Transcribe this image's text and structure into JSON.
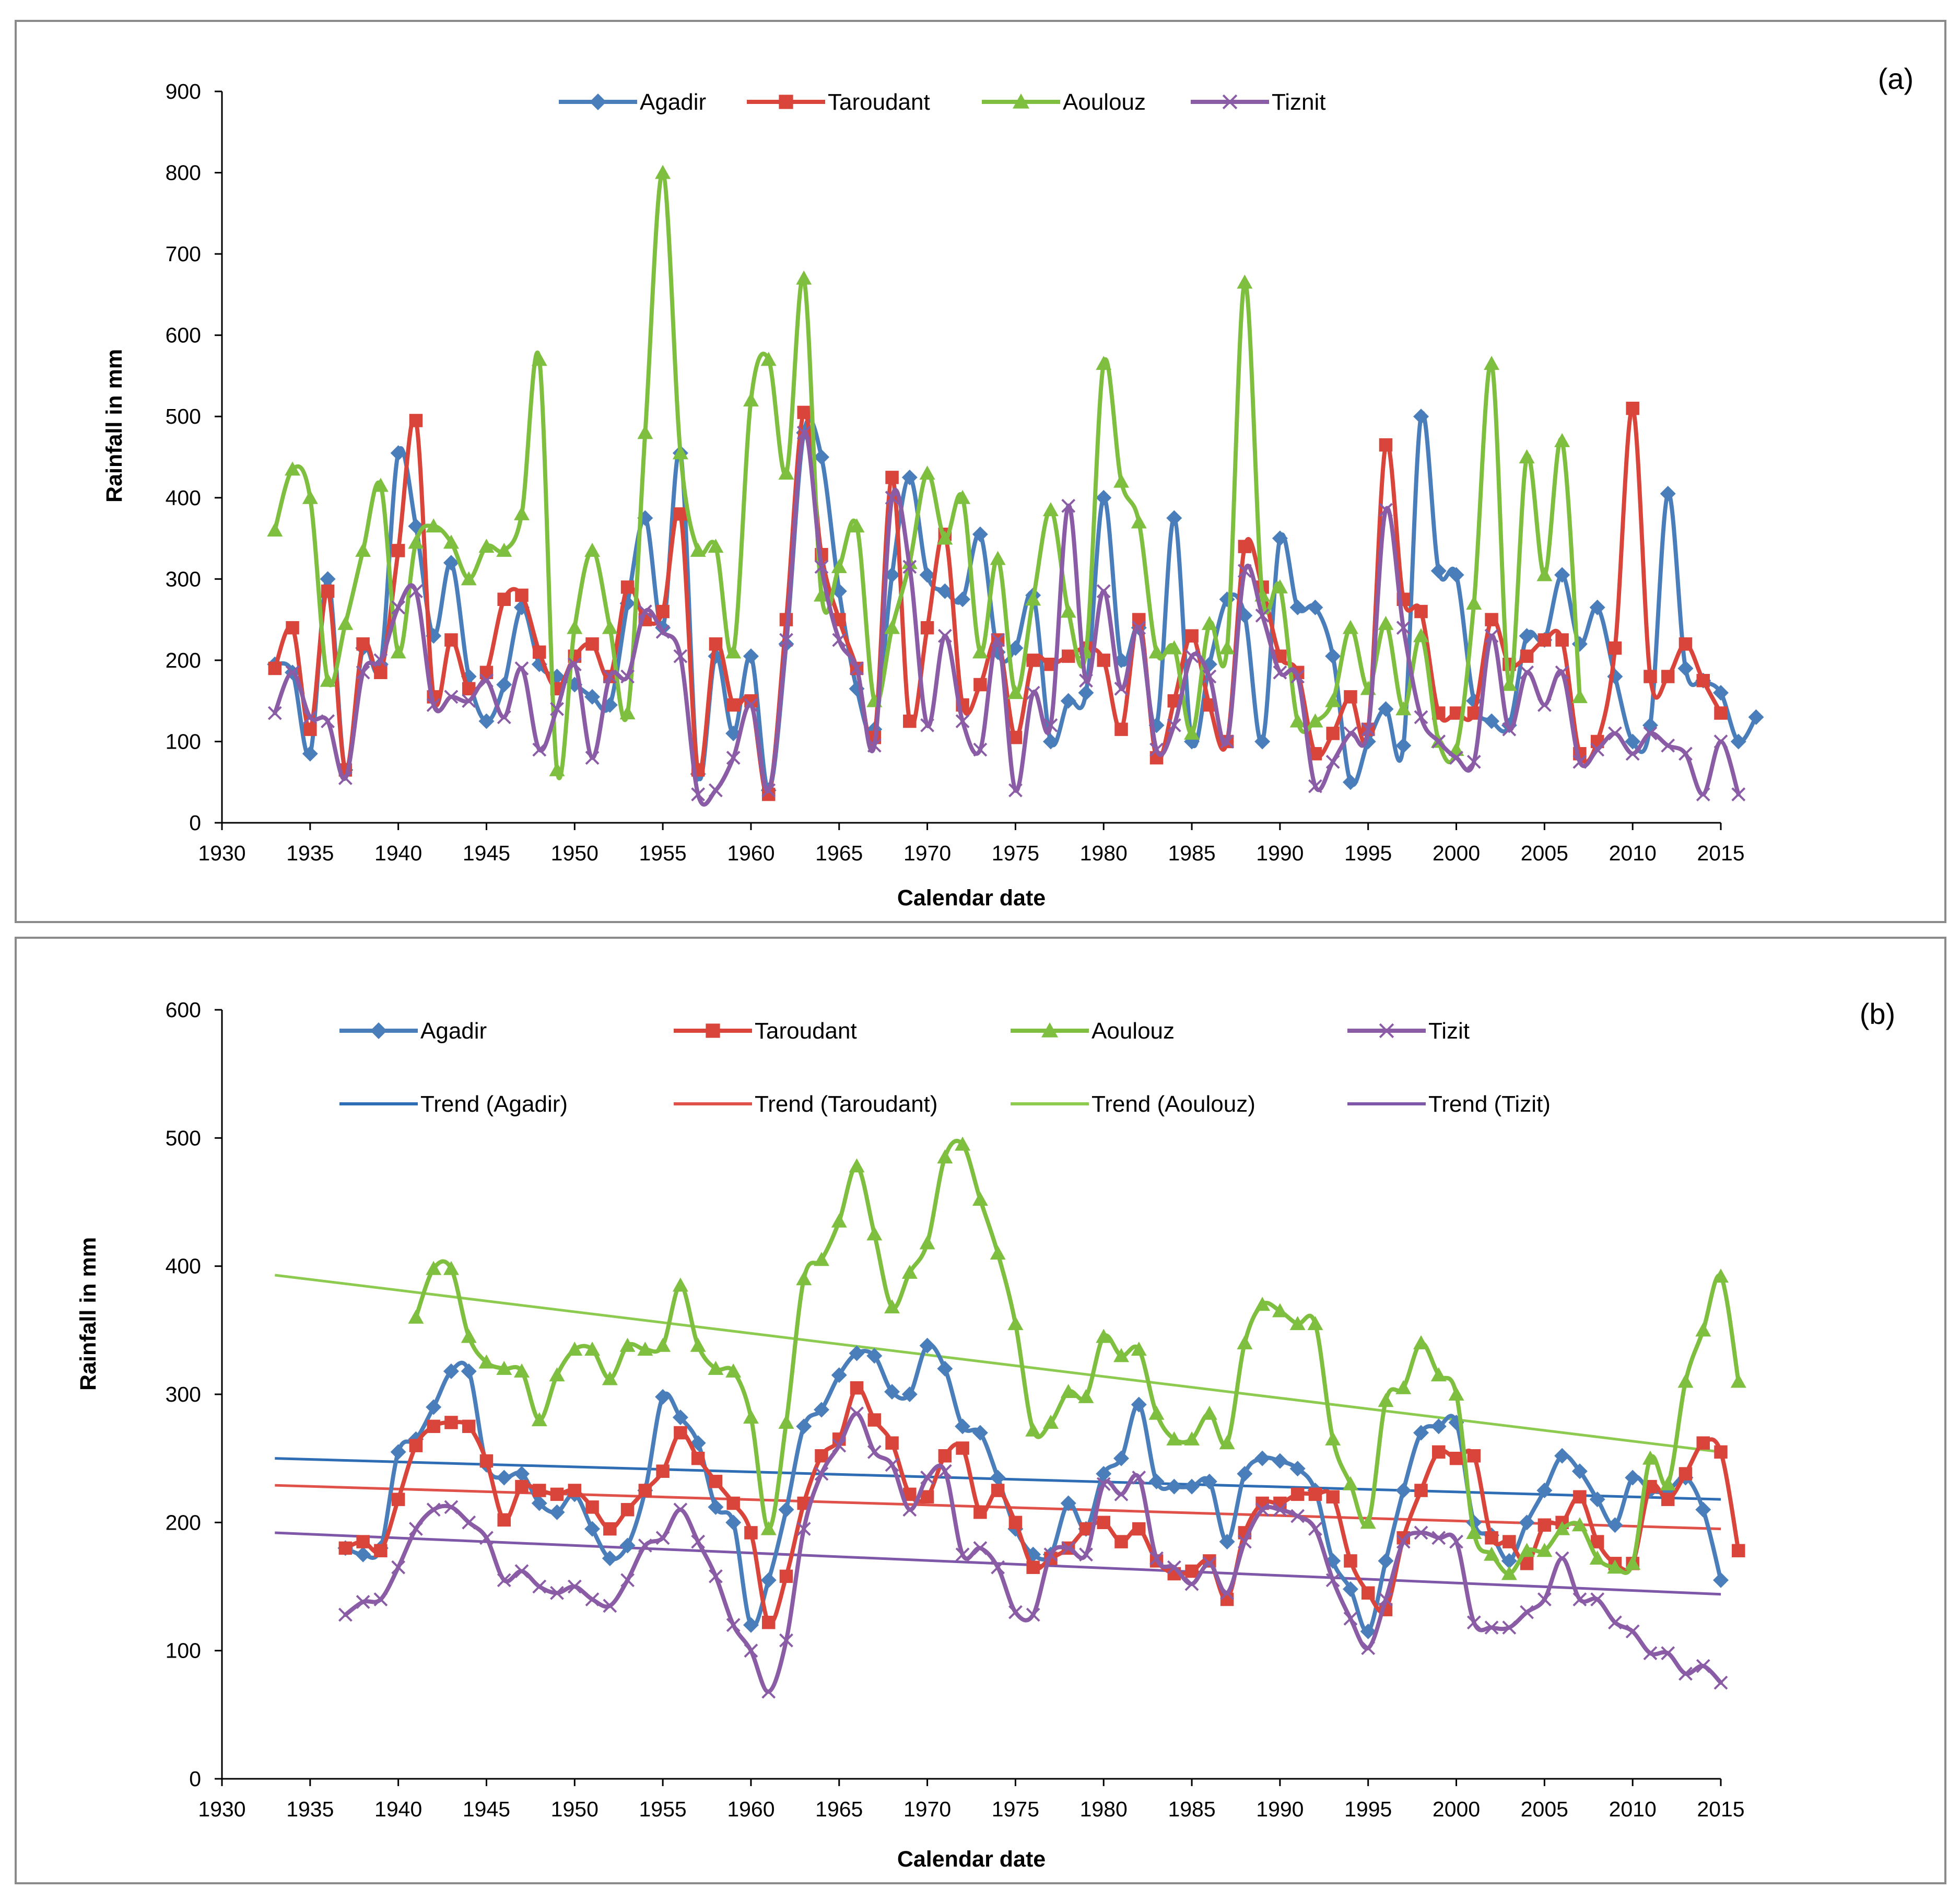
{
  "colors": {
    "agadir": "#4A7EBB",
    "taroudant": "#D9443B",
    "aoulouz": "#7FBF3F",
    "tiznit": "#8B5CA6",
    "trend_agadir": "#2E6DB4",
    "trend_taroudant": "#E0514A",
    "trend_aoulouz": "#8CCB50",
    "trend_tiznit": "#7E57A8"
  },
  "chart_data": [
    {
      "type": "line",
      "panel_label": "(a)",
      "xlabel": "Calendar date",
      "ylabel": "Rainfall  in mm",
      "xlim": [
        1930,
        2015
      ],
      "ylim": [
        0,
        900
      ],
      "xticks": [
        "1930",
        "1935",
        "1940",
        "1945",
        "1950",
        "1955",
        "1960",
        "1965",
        "1970",
        "1975",
        "1980",
        "1985",
        "1990",
        "1995",
        "2000",
        "2005",
        "2010",
        "2015"
      ],
      "yticks": [
        "0",
        "100",
        "200",
        "300",
        "400",
        "500",
        "600",
        "700",
        "800",
        "900"
      ],
      "legend_position": "top",
      "x_start": 1933,
      "series": [
        {
          "name": "Agadir",
          "marker": "diamond",
          "color_key": "agadir",
          "values": [
            195,
            185,
            85,
            300,
            65,
            215,
            195,
            455,
            365,
            230,
            320,
            180,
            125,
            170,
            265,
            195,
            180,
            170,
            155,
            145,
            270,
            375,
            240,
            455,
            60,
            205,
            110,
            205,
            40,
            220,
            480,
            450,
            285,
            165,
            115,
            305,
            425,
            305,
            285,
            275,
            355,
            210,
            215,
            280,
            100,
            150,
            160,
            400,
            200,
            240,
            120,
            375,
            100,
            195,
            275,
            255,
            100,
            350,
            265,
            265,
            205,
            50,
            100,
            140,
            95,
            500,
            310,
            305,
            150,
            125,
            120,
            230,
            225,
            305,
            220,
            265,
            180,
            100,
            120,
            405,
            190,
            175,
            160,
            100,
            130
          ]
        },
        {
          "name": "Taroudant",
          "marker": "square",
          "color_key": "taroudant",
          "values": [
            190,
            240,
            115,
            285,
            65,
            220,
            185,
            335,
            495,
            155,
            225,
            165,
            185,
            275,
            280,
            210,
            165,
            205,
            220,
            180,
            290,
            250,
            260,
            380,
            65,
            220,
            145,
            150,
            35,
            250,
            505,
            330,
            250,
            190,
            105,
            425,
            125,
            240,
            355,
            145,
            170,
            225,
            105,
            200,
            195,
            205,
            215,
            200,
            115,
            250,
            80,
            150,
            230,
            145,
            100,
            340,
            290,
            205,
            185,
            85,
            110,
            155,
            115,
            465,
            275,
            260,
            135,
            135,
            135,
            250,
            195,
            205,
            225,
            225,
            85,
            100,
            215,
            510,
            180,
            180,
            220,
            175,
            135
          ]
        },
        {
          "name": "Aoulouz",
          "marker": "triangle",
          "color_key": "aoulouz",
          "values": [
            360,
            435,
            400,
            175,
            245,
            335,
            415,
            210,
            345,
            365,
            345,
            300,
            340,
            335,
            380,
            570,
            65,
            240,
            335,
            240,
            135,
            480,
            800,
            455,
            335,
            340,
            210,
            520,
            570,
            430,
            670,
            280,
            315,
            365,
            150,
            240,
            320,
            430,
            350,
            400,
            210,
            325,
            160,
            275,
            385,
            260,
            210,
            565,
            420,
            370,
            210,
            215,
            110,
            245,
            215,
            665,
            280,
            290,
            125,
            125,
            150,
            240,
            165,
            245,
            140,
            230,
            100,
            90,
            270,
            565,
            170,
            450,
            305,
            470,
            155
          ]
        },
        {
          "name": "Tiznit",
          "marker": "cross",
          "color_key": "tiznit",
          "values": [
            135,
            185,
            130,
            125,
            55,
            185,
            200,
            265,
            285,
            145,
            155,
            150,
            175,
            130,
            190,
            90,
            140,
            195,
            80,
            180,
            180,
            260,
            235,
            205,
            35,
            40,
            80,
            145,
            40,
            225,
            480,
            315,
            225,
            190,
            95,
            400,
            315,
            120,
            230,
            125,
            90,
            225,
            40,
            160,
            120,
            390,
            175,
            285,
            165,
            240,
            90,
            120,
            205,
            180,
            100,
            310,
            255,
            185,
            180,
            45,
            75,
            110,
            115,
            385,
            240,
            130,
            100,
            80,
            75,
            230,
            115,
            185,
            145,
            185,
            75,
            90,
            110,
            85,
            110,
            95,
            85,
            35,
            100,
            35
          ]
        }
      ]
    },
    {
      "type": "line",
      "panel_label": "(b)",
      "xlabel": "Calendar date",
      "ylabel": "Rainfall  in mm",
      "xlim": [
        1930,
        2015
      ],
      "ylim": [
        0,
        600
      ],
      "xticks": [
        "1930",
        "1935",
        "1940",
        "1945",
        "1950",
        "1955",
        "1960",
        "1965",
        "1970",
        "1975",
        "1980",
        "1985",
        "1990",
        "1995",
        "2000",
        "2005",
        "2010",
        "2015"
      ],
      "yticks": [
        "0",
        "100",
        "200",
        "300",
        "400",
        "500",
        "600"
      ],
      "legend_position": "top",
      "series": [
        {
          "name": "Agadir",
          "marker": "diamond",
          "color_key": "agadir",
          "x_start": 1937,
          "values": [
            180,
            175,
            180,
            255,
            265,
            290,
            318,
            318,
            245,
            235,
            238,
            215,
            208,
            222,
            195,
            172,
            182,
            225,
            298,
            282,
            262,
            212,
            200,
            120,
            155,
            210,
            275,
            288,
            315,
            332,
            330,
            302,
            300,
            338,
            320,
            275,
            270,
            235,
            195,
            175,
            175,
            215,
            195,
            238,
            250,
            292,
            232,
            228,
            228,
            232,
            185,
            238,
            250,
            248,
            242,
            225,
            170,
            148,
            115,
            170,
            225,
            270,
            275,
            278,
            200,
            190,
            170,
            200,
            225,
            252,
            240,
            218,
            198,
            235,
            225,
            225,
            235,
            210,
            155
          ]
        },
        {
          "name": "Taroudant",
          "marker": "square",
          "color_key": "taroudant",
          "x_start": 1937,
          "values": [
            180,
            185,
            178,
            218,
            260,
            275,
            278,
            275,
            248,
            202,
            228,
            225,
            222,
            225,
            212,
            195,
            210,
            225,
            240,
            270,
            250,
            232,
            215,
            192,
            122,
            158,
            215,
            252,
            265,
            305,
            280,
            262,
            222,
            220,
            252,
            258,
            208,
            225,
            200,
            165,
            172,
            180,
            195,
            200,
            185,
            195,
            170,
            160,
            162,
            170,
            140,
            192,
            215,
            215,
            222,
            222,
            220,
            170,
            145,
            132,
            188,
            225,
            255,
            250,
            252,
            188,
            185,
            168,
            198,
            200,
            220,
            185,
            168,
            168,
            228,
            218,
            238,
            262,
            255,
            178
          ]
        },
        {
          "name": "Aoulouz",
          "marker": "triangle",
          "color_key": "aoulouz",
          "x_start": 1941,
          "values": [
            360,
            398,
            398,
            345,
            325,
            320,
            318,
            280,
            315,
            335,
            335,
            312,
            338,
            335,
            338,
            385,
            338,
            320,
            318,
            282,
            195,
            278,
            390,
            405,
            435,
            478,
            425,
            368,
            395,
            418,
            485,
            495,
            452,
            410,
            355,
            272,
            278,
            302,
            298,
            345,
            330,
            335,
            285,
            265,
            265,
            285,
            262,
            340,
            370,
            365,
            355,
            355,
            265,
            230,
            200,
            295,
            305,
            340,
            315,
            300,
            192,
            175,
            160,
            178,
            178,
            195,
            198,
            172,
            165,
            168,
            250,
            230,
            310,
            350,
            392,
            310
          ]
        },
        {
          "name": "Tizit",
          "marker": "cross",
          "color_key": "tiznit",
          "x_start": 1937,
          "values": [
            128,
            138,
            140,
            165,
            195,
            210,
            212,
            200,
            188,
            155,
            162,
            150,
            145,
            150,
            140,
            135,
            155,
            182,
            188,
            210,
            185,
            158,
            120,
            100,
            68,
            108,
            195,
            238,
            260,
            285,
            255,
            245,
            210,
            235,
            240,
            175,
            180,
            165,
            130,
            128,
            175,
            180,
            175,
            230,
            222,
            235,
            172,
            165,
            152,
            168,
            145,
            185,
            210,
            210,
            205,
            195,
            155,
            125,
            102,
            140,
            185,
            192,
            188,
            185,
            122,
            118,
            118,
            130,
            140,
            172,
            140,
            140,
            122,
            115,
            98,
            98,
            82,
            88,
            75
          ]
        }
      ],
      "trends": [
        {
          "name": "Trend (Agadir)",
          "color_key": "trend_agadir",
          "x": [
            1933,
            2015
          ],
          "y": [
            250,
            218
          ]
        },
        {
          "name": "Trend (Taroudant)",
          "color_key": "trend_taroudant",
          "x": [
            1933,
            2015
          ],
          "y": [
            229,
            195
          ]
        },
        {
          "name": "Trend (Aoulouz)",
          "color_key": "trend_aoulouz",
          "x": [
            1933,
            2015
          ],
          "y": [
            393,
            255
          ]
        },
        {
          "name": "Trend (Tizit)",
          "color_key": "trend_tiznit",
          "x": [
            1933,
            2015
          ],
          "y": [
            192,
            144
          ]
        }
      ]
    }
  ]
}
